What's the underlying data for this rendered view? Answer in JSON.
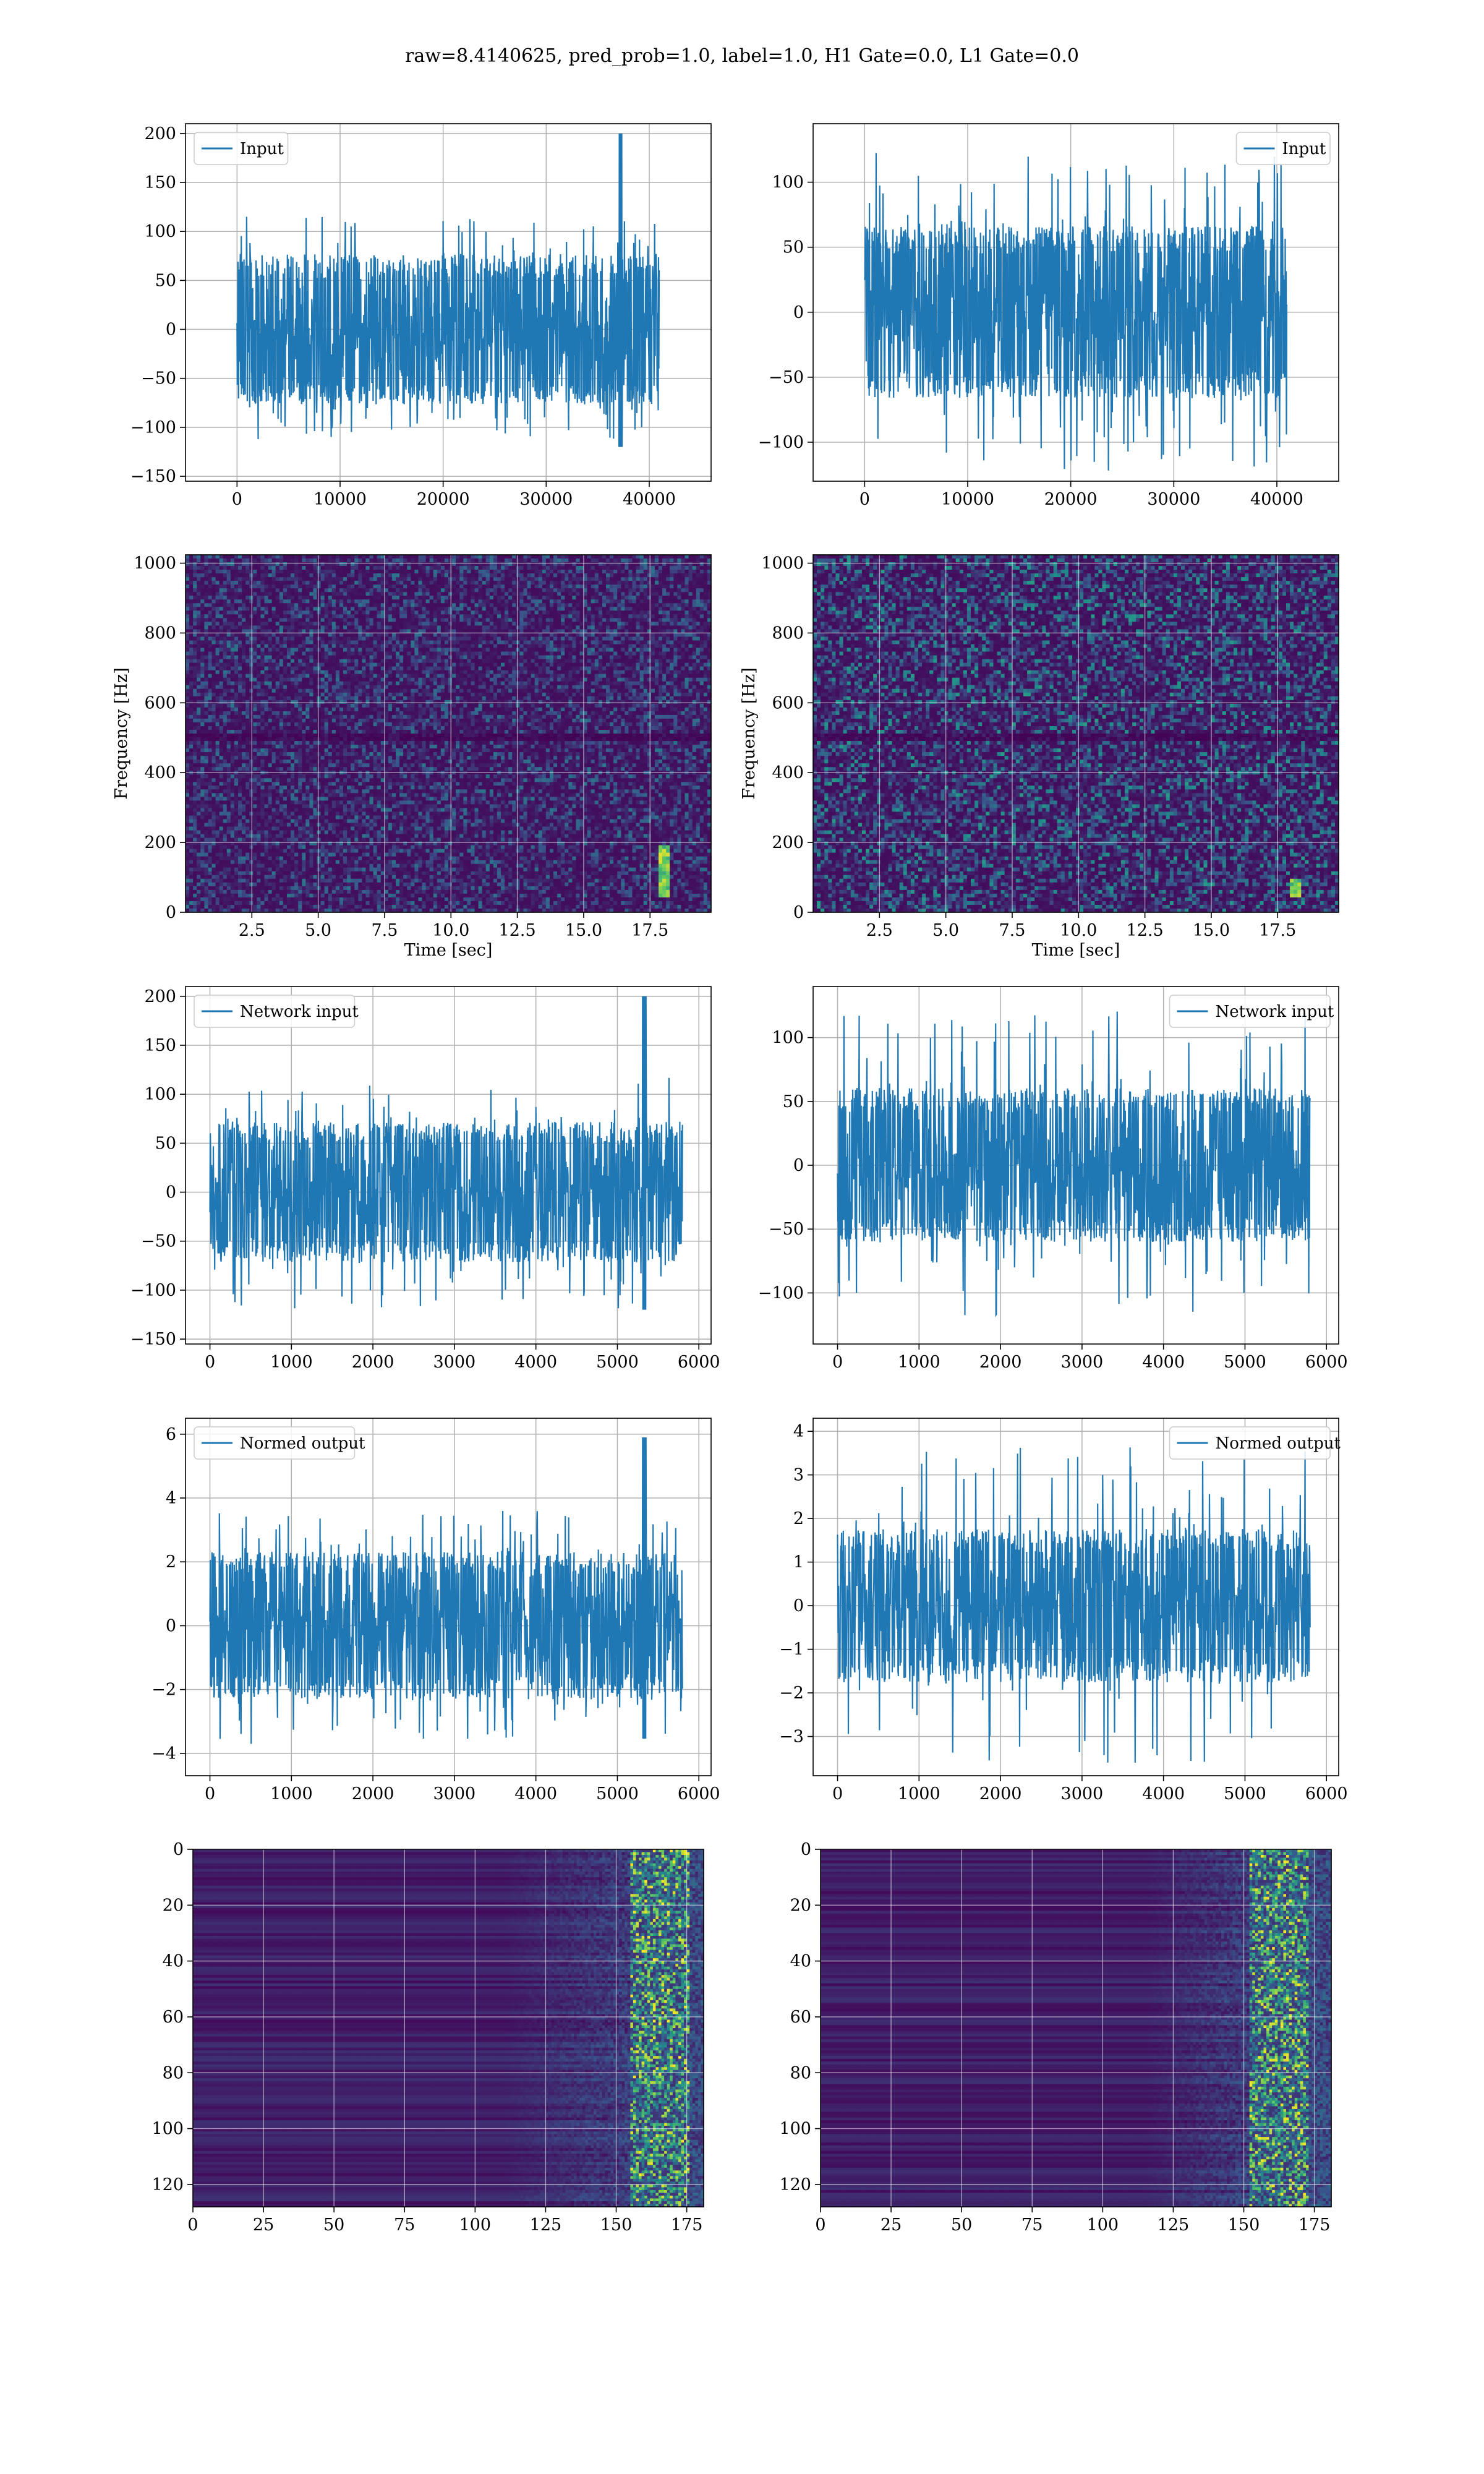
{
  "suptitle": "raw=8.4140625, pred_prob=1.0, label=1.0, H1 Gate=0.0, L1 Gate=0.0",
  "colors": {
    "line": "#1f77b4",
    "grid": "#b0b0b0",
    "frame": "#000000"
  },
  "heatmap_colormap": [
    "#440154",
    "#3b528b",
    "#21918c",
    "#5ec962",
    "#fde725"
  ],
  "chart_data": [
    {
      "id": "h1-input",
      "type": "line",
      "legend": [
        "Input"
      ],
      "legend_loc": "upper left",
      "xlim": [
        -5000,
        46000
      ],
      "ylim": [
        -155,
        210
      ],
      "n_points": 40960,
      "xticks": [
        0,
        10000,
        20000,
        30000,
        40000
      ],
      "yticks": [
        -150,
        -100,
        -50,
        0,
        50,
        100,
        150,
        200
      ],
      "amplitude": {
        "core": 70,
        "max": 120,
        "min": -135
      },
      "spike": {
        "x": 37200,
        "y": 200
      }
    },
    {
      "id": "l1-input",
      "type": "line",
      "legend": [
        "Input"
      ],
      "legend_loc": "upper right",
      "xlim": [
        -5000,
        46000
      ],
      "ylim": [
        -130,
        145
      ],
      "n_points": 40960,
      "xticks": [
        0,
        10000,
        20000,
        30000,
        40000
      ],
      "yticks": [
        -100,
        -50,
        0,
        50,
        100
      ],
      "amplitude": {
        "core": 60,
        "max": 130,
        "min": -125
      }
    },
    {
      "id": "h1-spectrogram",
      "type": "heatmap",
      "xlabel": "Time [sec]",
      "ylabel": "Frequency [Hz]",
      "xlim": [
        0,
        19.8
      ],
      "ylim": [
        0,
        1024
      ],
      "xticks": [
        2.5,
        5.0,
        7.5,
        10.0,
        12.5,
        15.0,
        17.5
      ],
      "yticks": [
        0,
        200,
        400,
        600,
        800,
        1000
      ],
      "intensity": 0.35,
      "dark_band_hz": 500,
      "chirp": {
        "t": 18.0,
        "f_low": 40,
        "f_high": 190
      }
    },
    {
      "id": "l1-spectrogram",
      "type": "heatmap",
      "xlabel": "Time [sec]",
      "ylabel": "Frequency [Hz]",
      "xlim": [
        0,
        19.8
      ],
      "ylim": [
        0,
        1024
      ],
      "xticks": [
        2.5,
        5.0,
        7.5,
        10.0,
        12.5,
        15.0,
        17.5
      ],
      "yticks": [
        0,
        200,
        400,
        600,
        800,
        1000
      ],
      "intensity": 0.5,
      "dark_band_hz": 500,
      "chirp": {
        "t": 18.2,
        "f_low": 40,
        "f_high": 100
      }
    },
    {
      "id": "h1-network-input",
      "type": "line",
      "legend": [
        "Network input"
      ],
      "legend_loc": "upper left",
      "xlim": [
        -300,
        6150
      ],
      "ylim": [
        -155,
        210
      ],
      "n_points": 5800,
      "xticks": [
        0,
        1000,
        2000,
        3000,
        4000,
        5000,
        6000
      ],
      "yticks": [
        -150,
        -100,
        -50,
        0,
        50,
        100,
        150,
        200
      ],
      "amplitude": {
        "core": 65,
        "max": 125,
        "min": -140
      },
      "spike": {
        "x": 5330,
        "y": 200
      }
    },
    {
      "id": "l1-network-input",
      "type": "line",
      "legend": [
        "Network input"
      ],
      "legend_loc": "upper right",
      "xlim": [
        -300,
        6150
      ],
      "ylim": [
        -140,
        140
      ],
      "n_points": 5800,
      "xticks": [
        0,
        1000,
        2000,
        3000,
        4000,
        5000,
        6000
      ],
      "yticks": [
        -100,
        -50,
        0,
        50,
        100
      ],
      "amplitude": {
        "core": 55,
        "max": 130,
        "min": -120
      }
    },
    {
      "id": "h1-normed-output",
      "type": "line",
      "legend": [
        "Normed output"
      ],
      "legend_loc": "upper left",
      "xlim": [
        -300,
        6150
      ],
      "ylim": [
        -4.7,
        6.5
      ],
      "n_points": 5800,
      "xticks": [
        0,
        1000,
        2000,
        3000,
        4000,
        5000,
        6000
      ],
      "yticks": [
        -4,
        -2,
        0,
        2,
        4,
        6
      ],
      "amplitude": {
        "core": 2.1,
        "max": 3.8,
        "min": -4.1
      },
      "spike": {
        "x": 5330,
        "y": 5.9
      }
    },
    {
      "id": "l1-normed-output",
      "type": "line",
      "legend": [
        "Normed output"
      ],
      "legend_loc": "upper right",
      "xlim": [
        -300,
        6150
      ],
      "ylim": [
        -3.9,
        4.3
      ],
      "n_points": 5800,
      "xticks": [
        0,
        1000,
        2000,
        3000,
        4000,
        5000,
        6000
      ],
      "yticks": [
        -3,
        -2,
        -1,
        0,
        1,
        2,
        3,
        4
      ],
      "amplitude": {
        "core": 1.6,
        "max": 3.9,
        "min": -3.6
      }
    },
    {
      "id": "h1-features",
      "type": "heatmap",
      "xlim": [
        0,
        181
      ],
      "ylim": [
        128,
        0
      ],
      "xticks": [
        0,
        25,
        50,
        75,
        100,
        125,
        150,
        175
      ],
      "yticks": [
        0,
        20,
        40,
        60,
        80,
        100,
        120
      ],
      "bright_columns": [
        155,
        175
      ],
      "fade_start": 110
    },
    {
      "id": "l1-features",
      "type": "heatmap",
      "xlim": [
        0,
        181
      ],
      "ylim": [
        128,
        0
      ],
      "xticks": [
        0,
        25,
        50,
        75,
        100,
        125,
        150,
        175
      ],
      "yticks": [
        0,
        20,
        40,
        60,
        80,
        100,
        120
      ],
      "bright_columns": [
        152,
        172
      ],
      "fade_start": 115
    }
  ]
}
